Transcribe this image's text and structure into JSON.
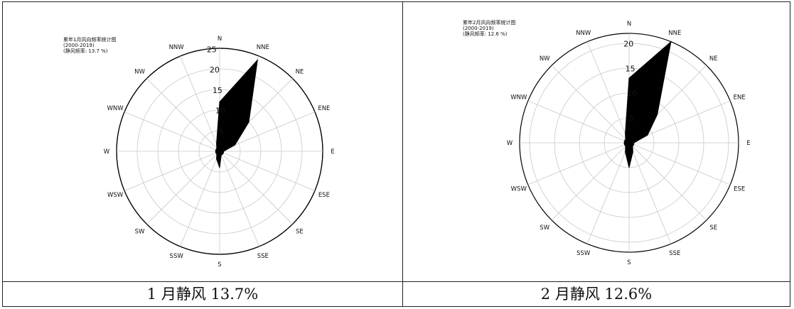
{
  "chart_data": [
    {
      "type": "polar-area",
      "title_lines": [
        "累年1月风向频率统计图",
        "(2000-2019)",
        "(静风频率: 13.7 %)"
      ],
      "directions": [
        "N",
        "NNE",
        "NE",
        "ENE",
        "E",
        "ESE",
        "SE",
        "SSE",
        "S",
        "SSW",
        "SW",
        "WSW",
        "W",
        "WNW",
        "NW",
        "NNW"
      ],
      "values": [
        12,
        24,
        10,
        4,
        1,
        1,
        1,
        1,
        4,
        2,
        1,
        1,
        1,
        1,
        1,
        2
      ],
      "rlim": [
        0,
        25
      ],
      "rticks": [
        5,
        10,
        15,
        20,
        25
      ],
      "grid": true,
      "caption": "1 月静风 13.7%"
    },
    {
      "type": "polar-area",
      "title_lines": [
        "累年2月风向频率统计图",
        "(2000-2019)",
        "(静风频率: 12.6 %)"
      ],
      "directions": [
        "N",
        "NNE",
        "NE",
        "ENE",
        "E",
        "ESE",
        "SE",
        "SSE",
        "S",
        "SSW",
        "SW",
        "WSW",
        "W",
        "WNW",
        "NW",
        "NNW"
      ],
      "values": [
        13,
        22,
        8,
        4,
        1,
        1,
        1,
        2,
        5,
        2,
        1,
        1,
        1,
        1,
        1,
        2
      ],
      "rlim": [
        0,
        22
      ],
      "rticks": [
        5,
        10,
        15,
        20
      ],
      "grid": true,
      "caption": "2 月静风 12.6%"
    }
  ],
  "colors": {
    "fill": "#000000",
    "grid": "#c8c8c8",
    "outline": "#000000"
  }
}
